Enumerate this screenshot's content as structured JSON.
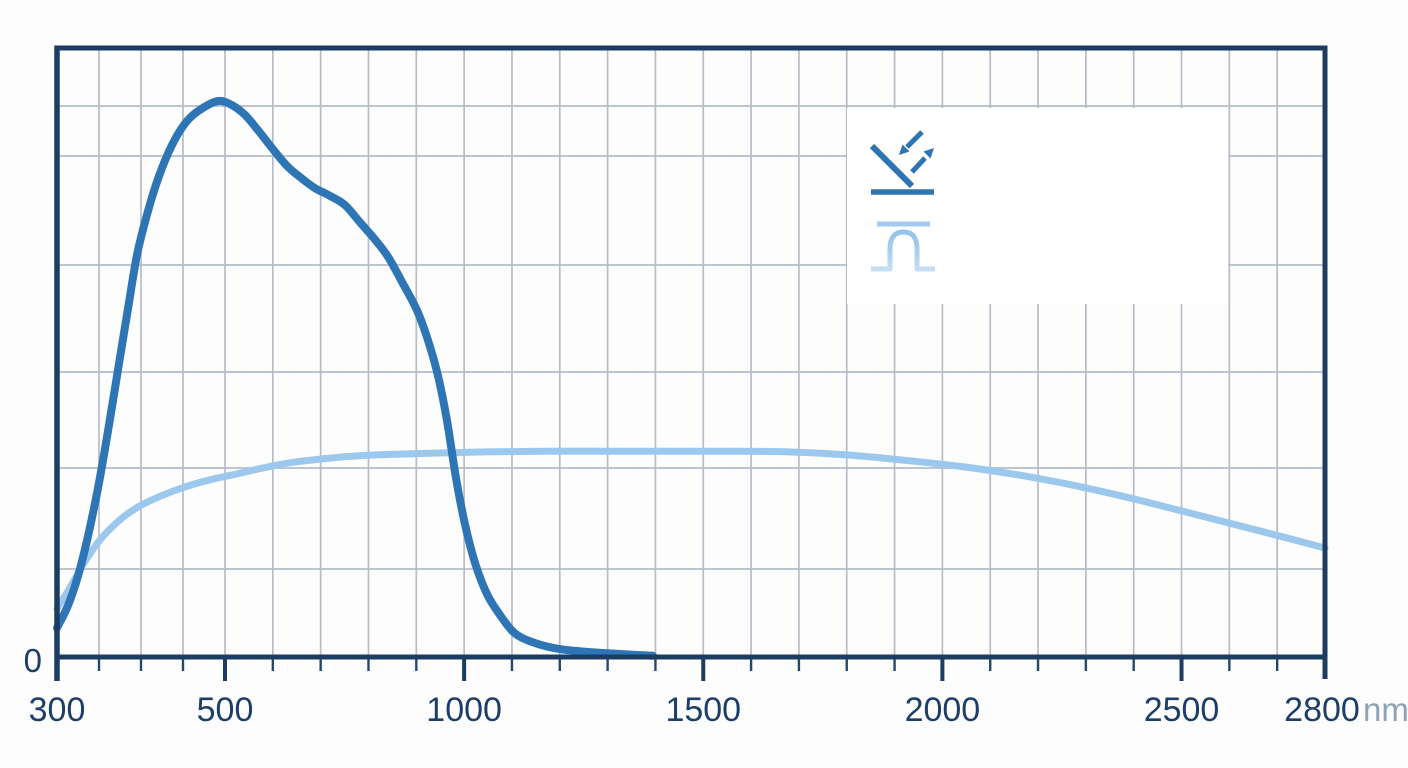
{
  "chart_data": {
    "type": "line",
    "title": "",
    "grid": true,
    "legend_position": "top-right icon panel (no text, pictogram only)",
    "x_axis": {
      "unit": "nm",
      "range_nm": [
        300,
        2800
      ],
      "scale": "piecewise-linear: 300-500 nm stretched about 1.8x relative to 500-2800 nm",
      "major_ticks": [
        300,
        500,
        1000,
        1500,
        2000,
        2500,
        2800
      ],
      "major_tick_labels": [
        "300",
        "500",
        "1000",
        "1500",
        "2000",
        "2500",
        "2800"
      ],
      "minor_ticks": [
        350,
        400,
        450,
        600,
        700,
        800,
        900,
        1100,
        1200,
        1300,
        1400,
        1600,
        1700,
        1800,
        1900,
        2100,
        2200,
        2300,
        2400,
        2600,
        2700
      ]
    },
    "y_axis": {
      "tick_labels": [
        "0"
      ],
      "range_relative": [
        0,
        1
      ],
      "note": "only the zero level is labelled; values below are relative response (fraction of plot height)"
    },
    "series": [
      {
        "name": "peaked spectral response curve (dark blue, peaks near 500 nm, cuts off by ~1400 nm)",
        "color": "#2e75b5",
        "stroke_width": 8,
        "points": [
          [
            300,
            0.048
          ],
          [
            313,
            0.084
          ],
          [
            325,
            0.133
          ],
          [
            337,
            0.199
          ],
          [
            349,
            0.279
          ],
          [
            361,
            0.373
          ],
          [
            373,
            0.475
          ],
          [
            385,
            0.576
          ],
          [
            396,
            0.665
          ],
          [
            411,
            0.745
          ],
          [
            425,
            0.803
          ],
          [
            440,
            0.849
          ],
          [
            456,
            0.882
          ],
          [
            473,
            0.901
          ],
          [
            492,
            0.913
          ],
          [
            515,
            0.906
          ],
          [
            542,
            0.89
          ],
          [
            569,
            0.865
          ],
          [
            598,
            0.836
          ],
          [
            630,
            0.806
          ],
          [
            657,
            0.788
          ],
          [
            688,
            0.77
          ],
          [
            720,
            0.757
          ],
          [
            751,
            0.742
          ],
          [
            782,
            0.714
          ],
          [
            814,
            0.685
          ],
          [
            841,
            0.657
          ],
          [
            870,
            0.616
          ],
          [
            901,
            0.57
          ],
          [
            924,
            0.521
          ],
          [
            945,
            0.463
          ],
          [
            964,
            0.389
          ],
          [
            983,
            0.294
          ],
          [
            1002,
            0.217
          ],
          [
            1023,
            0.154
          ],
          [
            1048,
            0.103
          ],
          [
            1075,
            0.069
          ],
          [
            1106,
            0.039
          ],
          [
            1148,
            0.023
          ],
          [
            1200,
            0.013
          ],
          [
            1263,
            0.008
          ],
          [
            1326,
            0.005
          ],
          [
            1395,
            0.002
          ]
        ]
      },
      {
        "name": "broadband flat spectral response curve (light blue, spans 300-2800 nm)",
        "color": "#9dc8ed",
        "stroke_width": 7,
        "points": [
          [
            300,
            0.079
          ],
          [
            315,
            0.113
          ],
          [
            333,
            0.156
          ],
          [
            351,
            0.192
          ],
          [
            373,
            0.223
          ],
          [
            396,
            0.246
          ],
          [
            423,
            0.264
          ],
          [
            452,
            0.279
          ],
          [
            482,
            0.291
          ],
          [
            521,
            0.3
          ],
          [
            577,
            0.31
          ],
          [
            636,
            0.319
          ],
          [
            699,
            0.325
          ],
          [
            772,
            0.33
          ],
          [
            855,
            0.333
          ],
          [
            949,
            0.335
          ],
          [
            1054,
            0.337
          ],
          [
            1169,
            0.338
          ],
          [
            1295,
            0.338
          ],
          [
            1420,
            0.338
          ],
          [
            1545,
            0.338
          ],
          [
            1671,
            0.337
          ],
          [
            1796,
            0.332
          ],
          [
            1922,
            0.323
          ],
          [
            2047,
            0.312
          ],
          [
            2173,
            0.297
          ],
          [
            2298,
            0.278
          ],
          [
            2424,
            0.255
          ],
          [
            2549,
            0.23
          ],
          [
            2674,
            0.205
          ],
          [
            2800,
            0.179
          ]
        ]
      }
    ],
    "icon_legend": {
      "name": "reflected-radiation-pyranometer-icon",
      "description": "pictogram of radiation arrows reflecting off a tilted surface above a sensor dome on a base"
    }
  }
}
